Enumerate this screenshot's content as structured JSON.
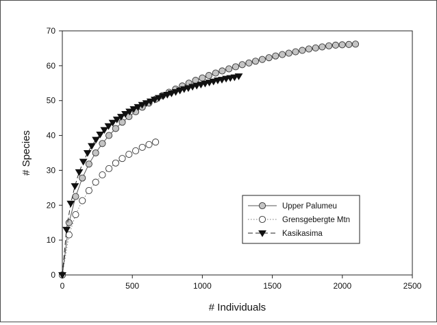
{
  "chart_data": {
    "type": "line",
    "title": "",
    "xlabel": "# Individuals",
    "ylabel": "# Species",
    "xlim": [
      0,
      2500
    ],
    "ylim": [
      0,
      70
    ],
    "xticks": [
      0,
      500,
      1000,
      1500,
      2000,
      2500
    ],
    "yticks": [
      0,
      10,
      20,
      30,
      40,
      50,
      60,
      70
    ],
    "grid": false,
    "legend_position": "lower-right",
    "series": [
      {
        "name": "Upper Palumeu",
        "line_style": "solid",
        "line_color": "#555555",
        "marker": "circle",
        "marker_fill": "#c4c4c4",
        "x": [
          0,
          48,
          95,
          143,
          190,
          238,
          286,
          333,
          381,
          428,
          476,
          524,
          571,
          619,
          666,
          714,
          762,
          809,
          857,
          904,
          952,
          1000,
          1047,
          1095,
          1142,
          1190,
          1238,
          1285,
          1333,
          1380,
          1428,
          1476,
          1523,
          1571,
          1618,
          1666,
          1714,
          1761,
          1809,
          1856,
          1904,
          1952,
          1999,
          2047,
          2094
        ],
        "y": [
          0,
          15,
          22.5,
          27.8,
          31.8,
          35,
          37.7,
          40,
          42,
          43.8,
          45.4,
          46.8,
          48.1,
          49.3,
          50.4,
          51.4,
          52.4,
          53.3,
          54.2,
          55,
          55.8,
          56.5,
          57.2,
          57.9,
          58.5,
          59.1,
          59.7,
          60.3,
          60.8,
          61.3,
          61.8,
          62.3,
          62.8,
          63.2,
          63.6,
          64,
          64.4,
          64.8,
          65.1,
          65.4,
          65.7,
          65.9,
          66,
          66.1,
          66.2
        ]
      },
      {
        "name": "Grensgebergte Mtn",
        "line_style": "dotted",
        "line_color": "#777777",
        "marker": "circle",
        "marker_fill": "#ffffff",
        "x": [
          0,
          48,
          95,
          143,
          190,
          238,
          286,
          333,
          381,
          428,
          476,
          524,
          571,
          619,
          666
        ],
        "y": [
          0,
          11.5,
          17.3,
          21.3,
          24.2,
          26.6,
          28.7,
          30.5,
          32.1,
          33.4,
          34.6,
          35.6,
          36.6,
          37.4,
          38.1
        ]
      },
      {
        "name": "Kasikasima",
        "line_style": "dashed",
        "line_color": "#222222",
        "marker": "triangle-down",
        "marker_fill": "#111111",
        "x": [
          0,
          30,
          60,
          90,
          120,
          150,
          180,
          210,
          240,
          270,
          300,
          330,
          360,
          390,
          420,
          450,
          480,
          510,
          540,
          570,
          600,
          630,
          660,
          690,
          720,
          750,
          780,
          810,
          840,
          870,
          900,
          930,
          960,
          990,
          1020,
          1050,
          1080,
          1110,
          1140,
          1170,
          1200,
          1230,
          1260
        ],
        "y": [
          0,
          13,
          20.5,
          25.5,
          29.5,
          32.5,
          35,
          37,
          38.8,
          40.3,
          41.6,
          42.7,
          43.7,
          44.6,
          45.4,
          46.2,
          46.9,
          47.6,
          48.2,
          48.8,
          49.3,
          49.8,
          50.3,
          50.8,
          51.3,
          51.7,
          52.1,
          52.5,
          52.9,
          53.3,
          53.6,
          54,
          54.3,
          54.6,
          54.9,
          55.2,
          55.5,
          55.8,
          56,
          56.3,
          56.5,
          56.7,
          57
        ]
      }
    ]
  }
}
